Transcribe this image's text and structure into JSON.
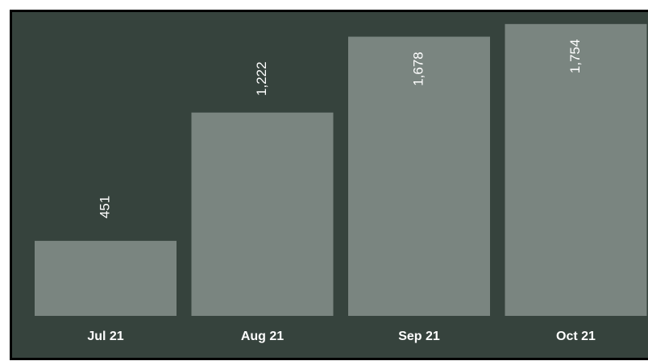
{
  "chart_data": {
    "type": "bar",
    "categories": [
      "Jul 21",
      "Aug 21",
      "Sep 21",
      "Oct 21"
    ],
    "values": [
      451,
      1222,
      1678,
      1754
    ],
    "value_labels": [
      "451",
      "1,222",
      "1,678",
      "1,754"
    ],
    "color": "#7a8580",
    "ylim": [
      0,
      1850
    ]
  }
}
